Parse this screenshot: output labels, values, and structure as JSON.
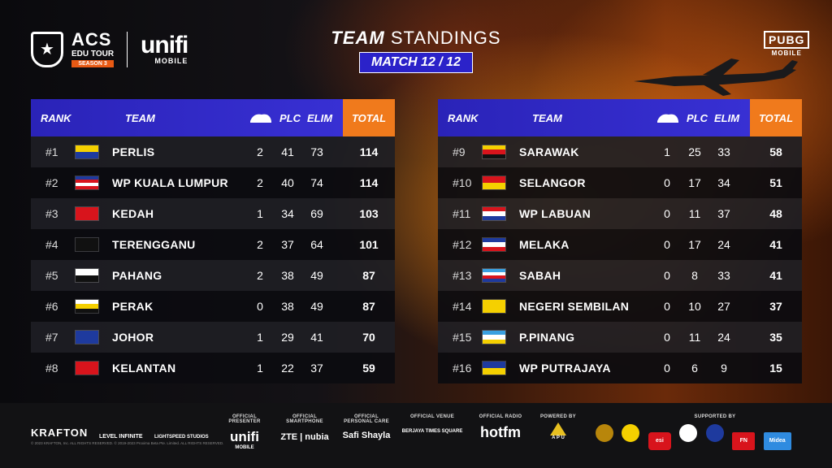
{
  "header": {
    "acs_title": "ACS",
    "acs_subtitle": "EDU TOUR",
    "acs_season": "SEASON 3",
    "unifi_main": "unifi",
    "unifi_sub": "MOBILE",
    "title_bold": "TEAM",
    "title_light": "STANDINGS",
    "match_label": "MATCH 12 / 12",
    "pubg_main": "PUBG",
    "pubg_sub": "MOBILE"
  },
  "columns": {
    "rank": "RANK",
    "team": "TEAM",
    "plc": "PLC",
    "elim": "ELIM",
    "total": "TOTAL"
  },
  "colors": {
    "header_blue": "#2a23b8",
    "total_orange": "#f07a1c",
    "match_tag_blue": "#2b22c9"
  },
  "left_table": [
    {
      "rank": "#1",
      "team": "PERLIS",
      "chicken": "2",
      "plc": "41",
      "elim": "73",
      "total": "114",
      "flag": [
        "#f5d000",
        "#1e3a9e"
      ]
    },
    {
      "rank": "#2",
      "team": "WP KUALA LUMPUR",
      "chicken": "2",
      "plc": "40",
      "elim": "74",
      "total": "114",
      "flag": [
        "#1e3a9e",
        "#d8141c",
        "#fff",
        "#d8141c"
      ]
    },
    {
      "rank": "#3",
      "team": "KEDAH",
      "chicken": "1",
      "plc": "34",
      "elim": "69",
      "total": "103",
      "flag": [
        "#d8141c"
      ]
    },
    {
      "rank": "#4",
      "team": "TERENGGANU",
      "chicken": "2",
      "plc": "37",
      "elim": "64",
      "total": "101",
      "flag": [
        "#111"
      ]
    },
    {
      "rank": "#5",
      "team": "PAHANG",
      "chicken": "2",
      "plc": "38",
      "elim": "49",
      "total": "87",
      "flag": [
        "#ffffff",
        "#111111"
      ]
    },
    {
      "rank": "#6",
      "team": "PERAK",
      "chicken": "0",
      "plc": "38",
      "elim": "49",
      "total": "87",
      "flag": [
        "#ffffff",
        "#f5d000",
        "#111111"
      ]
    },
    {
      "rank": "#7",
      "team": "JOHOR",
      "chicken": "1",
      "plc": "29",
      "elim": "41",
      "total": "70",
      "flag": [
        "#1e3a9e"
      ]
    },
    {
      "rank": "#8",
      "team": "KELANTAN",
      "chicken": "1",
      "plc": "22",
      "elim": "37",
      "total": "59",
      "flag": [
        "#d8141c"
      ]
    }
  ],
  "right_table": [
    {
      "rank": "#9",
      "team": "SARAWAK",
      "chicken": "1",
      "plc": "25",
      "elim": "33",
      "total": "58",
      "flag": [
        "#f5d000",
        "#d8141c",
        "#111111"
      ]
    },
    {
      "rank": "#10",
      "team": "SELANGOR",
      "chicken": "0",
      "plc": "17",
      "elim": "34",
      "total": "51",
      "flag": [
        "#d8141c",
        "#f5d000"
      ]
    },
    {
      "rank": "#11",
      "team": "WP LABUAN",
      "chicken": "0",
      "plc": "11",
      "elim": "37",
      "total": "48",
      "flag": [
        "#d8141c",
        "#ffffff",
        "#1e3a9e"
      ]
    },
    {
      "rank": "#12",
      "team": "MELAKA",
      "chicken": "0",
      "plc": "17",
      "elim": "24",
      "total": "41",
      "flag": [
        "#1e3a9e",
        "#ffffff",
        "#d8141c"
      ]
    },
    {
      "rank": "#13",
      "team": "SABAH",
      "chicken": "0",
      "plc": "8",
      "elim": "33",
      "total": "41",
      "flag": [
        "#3aa0e0",
        "#ffffff",
        "#d8141c",
        "#1e3a9e"
      ]
    },
    {
      "rank": "#14",
      "team": "NEGERI SEMBILAN",
      "chicken": "0",
      "plc": "10",
      "elim": "27",
      "total": "37",
      "flag": [
        "#f5d000"
      ]
    },
    {
      "rank": "#15",
      "team": "P.PINANG",
      "chicken": "0",
      "plc": "11",
      "elim": "24",
      "total": "35",
      "flag": [
        "#3aa0e0",
        "#ffffff",
        "#f5d000"
      ]
    },
    {
      "rank": "#16",
      "team": "WP PUTRAJAYA",
      "chicken": "0",
      "plc": "6",
      "elim": "9",
      "total": "15",
      "flag": [
        "#1e3a9e",
        "#f5d000"
      ]
    }
  ],
  "footer": {
    "krafton": "KRAFTON",
    "level_infinite": "LEVEL INFINITE",
    "lightspeed": "LIGHTSPEED STUDIOS",
    "copyright": "© 2023 KRAFTON, Inc. ALL RIGHTS RESERVED.   © 2019-2023 Proxima Beta Pte. Limited. ALL RIGHTS RESERVED.",
    "presenter_label": "OFFICIAL PRESENTER",
    "presenter_logo": "unifi",
    "presenter_sub": "MOBILE",
    "smartphone_label": "OFFICIAL SMARTPHONE",
    "smartphone_logo": "ZTE | nubia",
    "personal_care_label": "OFFICIAL PERSONAL CARE",
    "personal_care_logo": "Safi Shayla",
    "venue_label": "OFFICIAL VENUE",
    "venue_logo": "BERJAYA TIMES SQUARE",
    "radio_label": "OFFICIAL RADIO",
    "radio_logo": "hotfm",
    "powered_label": "POWERED BY",
    "powered_logo": "A P U",
    "supported_label": "SUPPORTED BY",
    "supported_logos": [
      "esi",
      "FN",
      "Midea"
    ]
  }
}
